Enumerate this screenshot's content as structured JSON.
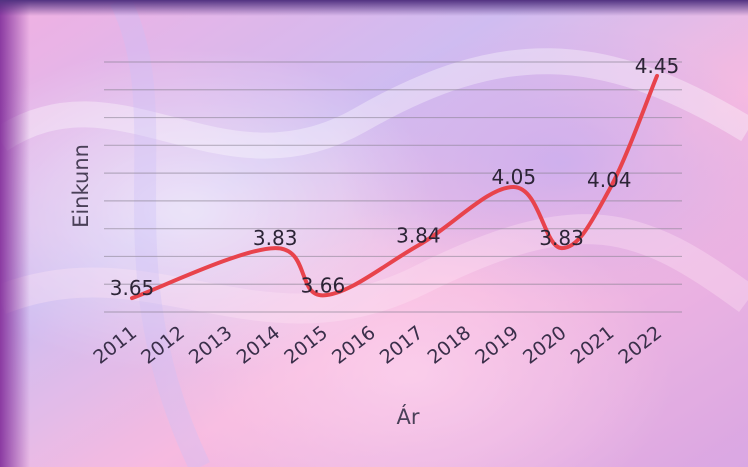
{
  "chart_data": {
    "type": "line",
    "title": "",
    "xlabel": "Ár",
    "ylabel": "Einkunn",
    "categories": [
      "2011",
      "2012",
      "2013",
      "2014",
      "2015",
      "2016",
      "2017",
      "2018",
      "2019",
      "2020",
      "2021",
      "2022"
    ],
    "series": [
      {
        "values": [
          3.65,
          null,
          null,
          3.83,
          3.66,
          null,
          3.84,
          null,
          4.05,
          3.83,
          4.04,
          4.45
        ],
        "value_labels": [
          "3.65",
          "",
          "",
          "3.83",
          "3.66",
          "",
          "3.84",
          "",
          "4.05",
          "3.83",
          "4.04",
          "4.45"
        ],
        "color": "#e8434c"
      }
    ],
    "ylim": [
      3.6,
      4.5
    ],
    "grid": true,
    "legend": "none",
    "colors": {
      "line": "#e8434c",
      "grid": "#8a8494",
      "text": "#2c2436"
    }
  }
}
